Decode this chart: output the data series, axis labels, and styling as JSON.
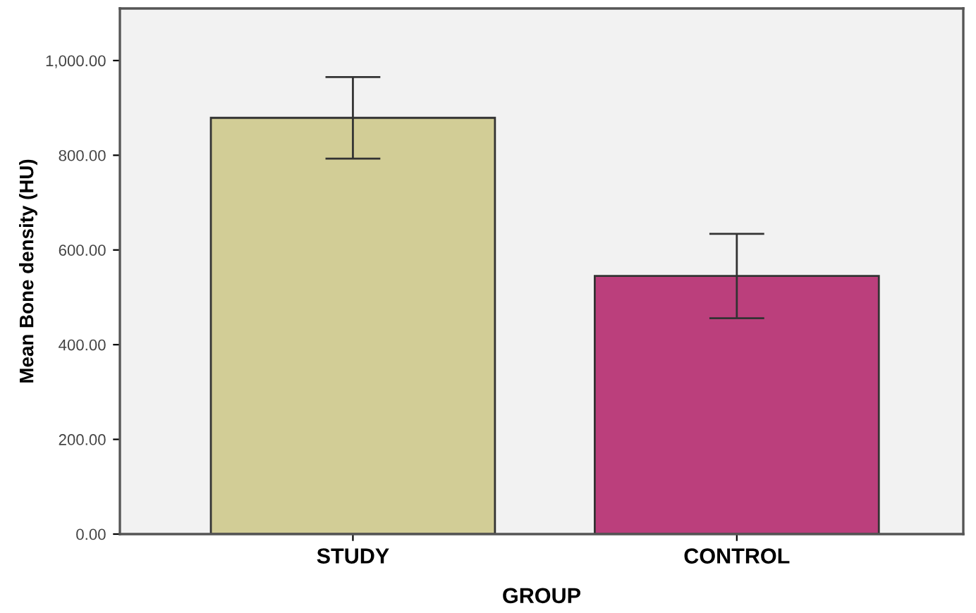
{
  "chart_data": {
    "type": "bar",
    "xlabel": "GROUP",
    "ylabel": "Mean Bone density (HU)",
    "categories": [
      "STUDY",
      "CONTROL"
    ],
    "values": [
      879,
      545
    ],
    "colors": [
      "#d2cd96",
      "#bb3f7c"
    ],
    "errors": [
      86,
      89
    ],
    "ylim": [
      0,
      1110
    ],
    "yticks": [
      {
        "value": 0,
        "label": "0.00"
      },
      {
        "value": 200,
        "label": "200.00"
      },
      {
        "value": 400,
        "label": "400.00"
      },
      {
        "value": 600,
        "label": "600.00"
      },
      {
        "value": 800,
        "label": "800.00"
      },
      {
        "value": 1000,
        "label": "1,000.00"
      }
    ],
    "grid": false,
    "legend": false
  }
}
